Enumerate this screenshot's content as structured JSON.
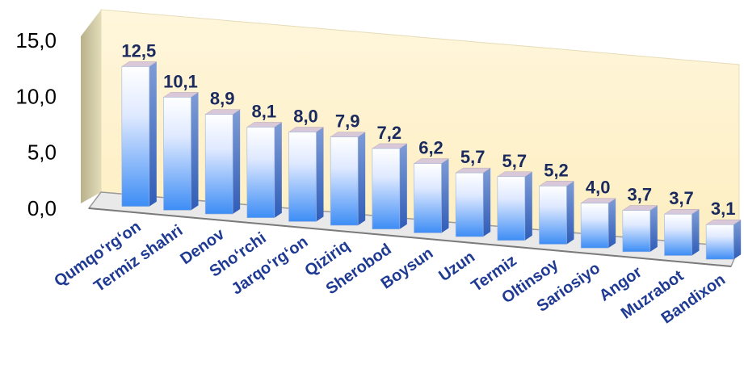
{
  "chart_data": {
    "type": "bar",
    "categories": [
      "Qumqo‘rg‘on",
      "Termiz shahri",
      "Denov",
      "Sho‘rchi",
      "Jarqo‘rg‘on",
      "Qiziriq",
      "Sherobod",
      "Boysun",
      "Uzun",
      "Termiz",
      "Oltinsoy",
      "Sariosiyo",
      "Angor",
      "Muzrabot",
      "Bandixon"
    ],
    "values": [
      12.5,
      10.1,
      8.9,
      8.1,
      8.0,
      7.9,
      7.2,
      6.2,
      5.7,
      5.7,
      5.2,
      4.0,
      3.7,
      3.7,
      3.1
    ],
    "value_labels": [
      "12,5",
      "10,1",
      "8,9",
      "8,1",
      "8,0",
      "7,9",
      "7,2",
      "6,2",
      "5,7",
      "5,7",
      "5,2",
      "4,0",
      "3,7",
      "3,7",
      "3,1"
    ],
    "y_ticks": [
      "0,0",
      "5,0",
      "10,0",
      "15,0"
    ],
    "ylim": [
      0,
      15
    ],
    "grid": false,
    "legend": "none",
    "style": "3d-perspective",
    "colors": {
      "bar_top": "#ffffff",
      "bar_bottom": "#3d8df5",
      "bar_side": "#3a64b0",
      "bar_cap": "#d8c8d8",
      "back_wall": "#fff3cf",
      "left_wall": "#c9c2a0",
      "floor": "#9a9a9a",
      "data_label": "#1a2a5e",
      "category_label": "#1f3a93"
    }
  }
}
